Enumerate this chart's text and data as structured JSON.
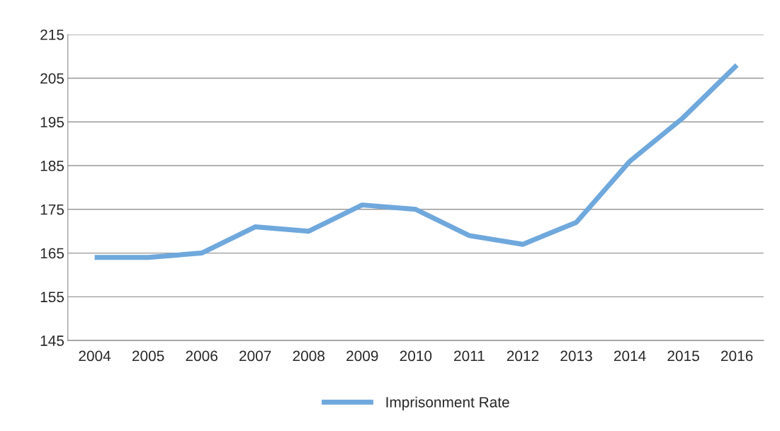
{
  "chart_data": {
    "type": "line",
    "categories": [
      "2004",
      "2005",
      "2006",
      "2007",
      "2008",
      "2009",
      "2010",
      "2011",
      "2012",
      "2013",
      "2014",
      "2015",
      "2016"
    ],
    "series": [
      {
        "name": "Imprisonment Rate",
        "color": "#6fa8dc",
        "values": [
          164,
          164,
          165,
          171,
          170,
          176,
          175,
          169,
          167,
          172,
          186,
          196,
          208
        ]
      }
    ],
    "ylim": [
      145,
      215
    ],
    "yticks": [
      145,
      155,
      165,
      175,
      185,
      195,
      205,
      215
    ],
    "grid": "y",
    "legend": "bottom",
    "marker": "none",
    "line_style": "solid"
  }
}
